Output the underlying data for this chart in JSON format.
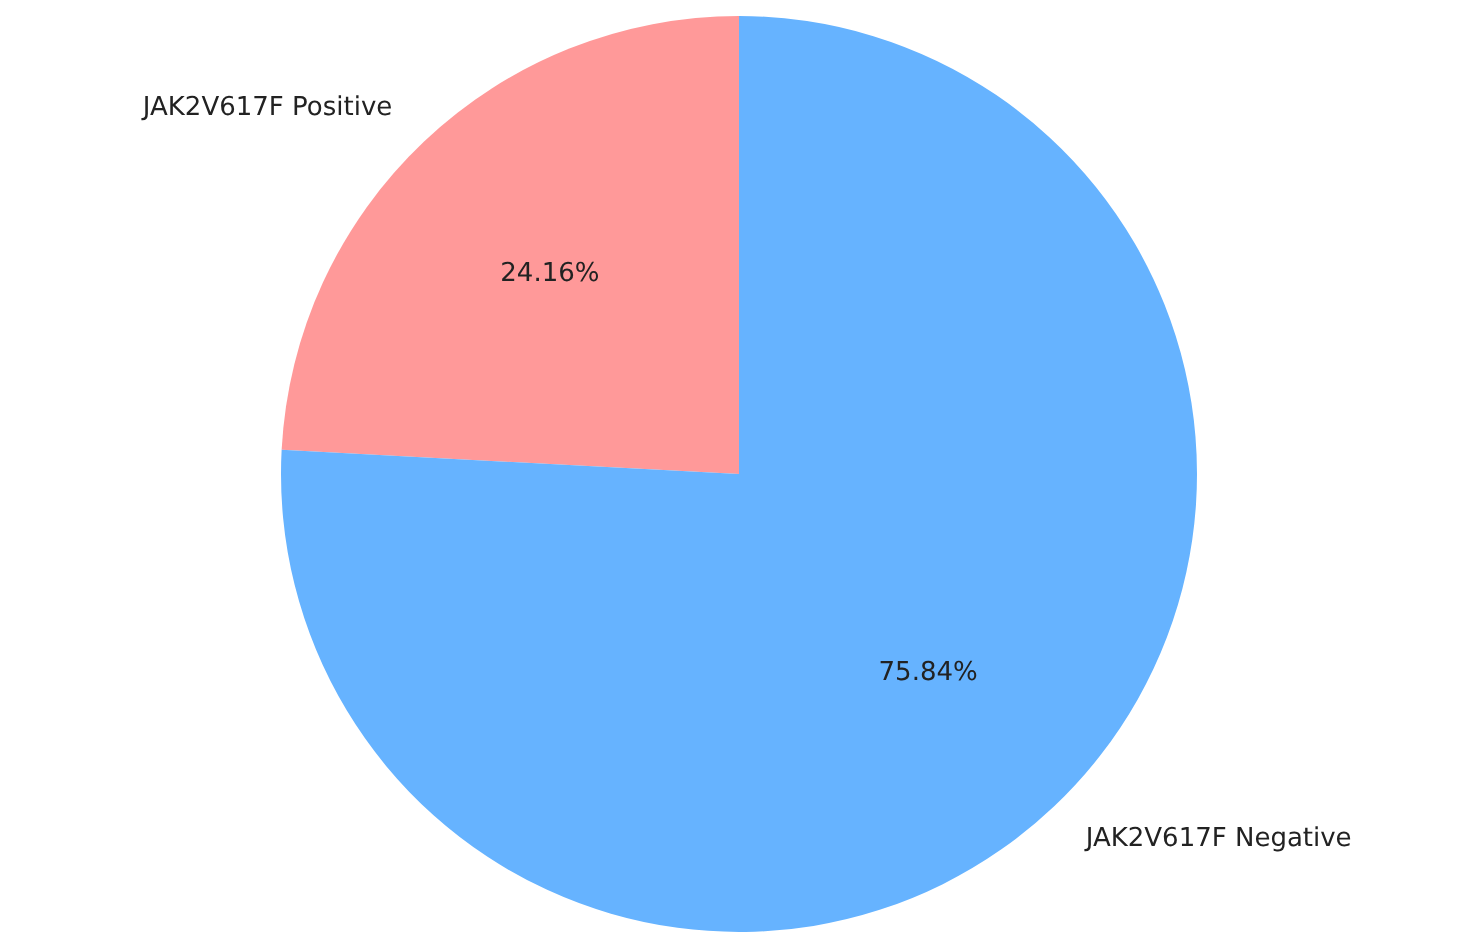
{
  "chart_data": {
    "type": "pie",
    "categories": [
      "JAK2V617F Positive",
      "JAK2V617F Negative"
    ],
    "values": [
      24.16,
      75.84
    ],
    "colors": [
      "#ff9999",
      "#66b3ff"
    ],
    "value_labels": [
      "24.16%",
      "75.84%"
    ],
    "legend": false
  }
}
